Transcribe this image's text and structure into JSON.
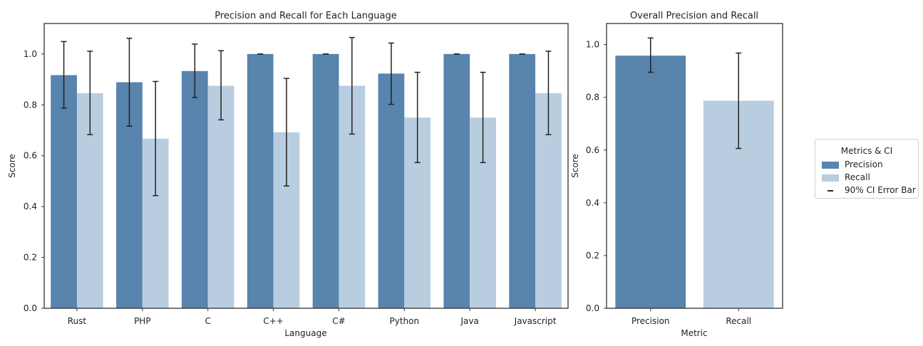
{
  "chart_data": [
    {
      "type": "bar",
      "title": "Precision and Recall for Each Language",
      "xlabel": "Language",
      "ylabel": "Score",
      "ylim": [
        0,
        1.12
      ],
      "yticks": [
        "0.0",
        "0.2",
        "0.4",
        "0.6",
        "0.8",
        "1.0"
      ],
      "categories": [
        "Rust",
        "PHP",
        "C",
        "C++",
        "C#",
        "Python",
        "Java",
        "Javascript"
      ],
      "series": [
        {
          "name": "Precision",
          "color": "#5884ad",
          "values": [
            0.917,
            0.889,
            0.933,
            1.0,
            1.0,
            0.923,
            1.0,
            1.0
          ],
          "ci_low": [
            0.787,
            0.716,
            0.829,
            1.0,
            1.0,
            0.802,
            1.0,
            1.0
          ],
          "ci_high": [
            1.049,
            1.062,
            1.039,
            1.0,
            1.0,
            1.043,
            1.0,
            1.0
          ]
        },
        {
          "name": "Recall",
          "color": "#b8cde0",
          "values": [
            0.846,
            0.667,
            0.875,
            0.692,
            0.875,
            0.75,
            0.75,
            0.846
          ],
          "ci_low": [
            0.683,
            0.443,
            0.741,
            0.481,
            0.685,
            0.573,
            0.573,
            0.683
          ],
          "ci_high": [
            1.011,
            0.892,
            1.013,
            0.904,
            1.065,
            0.928,
            0.928,
            1.011
          ]
        }
      ],
      "grid": false
    },
    {
      "type": "bar",
      "title": "Overall Precision and Recall",
      "xlabel": "Metric",
      "ylabel": "Score",
      "ylim": [
        0,
        1.08
      ],
      "yticks": [
        "0.0",
        "0.2",
        "0.4",
        "0.6",
        "0.8",
        "1.0"
      ],
      "categories": [
        "Precision",
        "Recall"
      ],
      "values": [
        0.958,
        0.787
      ],
      "ci_low": [
        0.895,
        0.606
      ],
      "ci_high": [
        1.025,
        0.968
      ],
      "colors": [
        "#5884ad",
        "#b8cde0"
      ],
      "grid": false
    }
  ],
  "legend": {
    "title": "Metrics & CI",
    "placement": "right",
    "items": [
      {
        "label": "Precision",
        "color": "#5884ad"
      },
      {
        "label": "Recall",
        "color": "#b8cde0"
      },
      {
        "label": "90% CI Error Bar",
        "color": "#222222"
      }
    ]
  }
}
